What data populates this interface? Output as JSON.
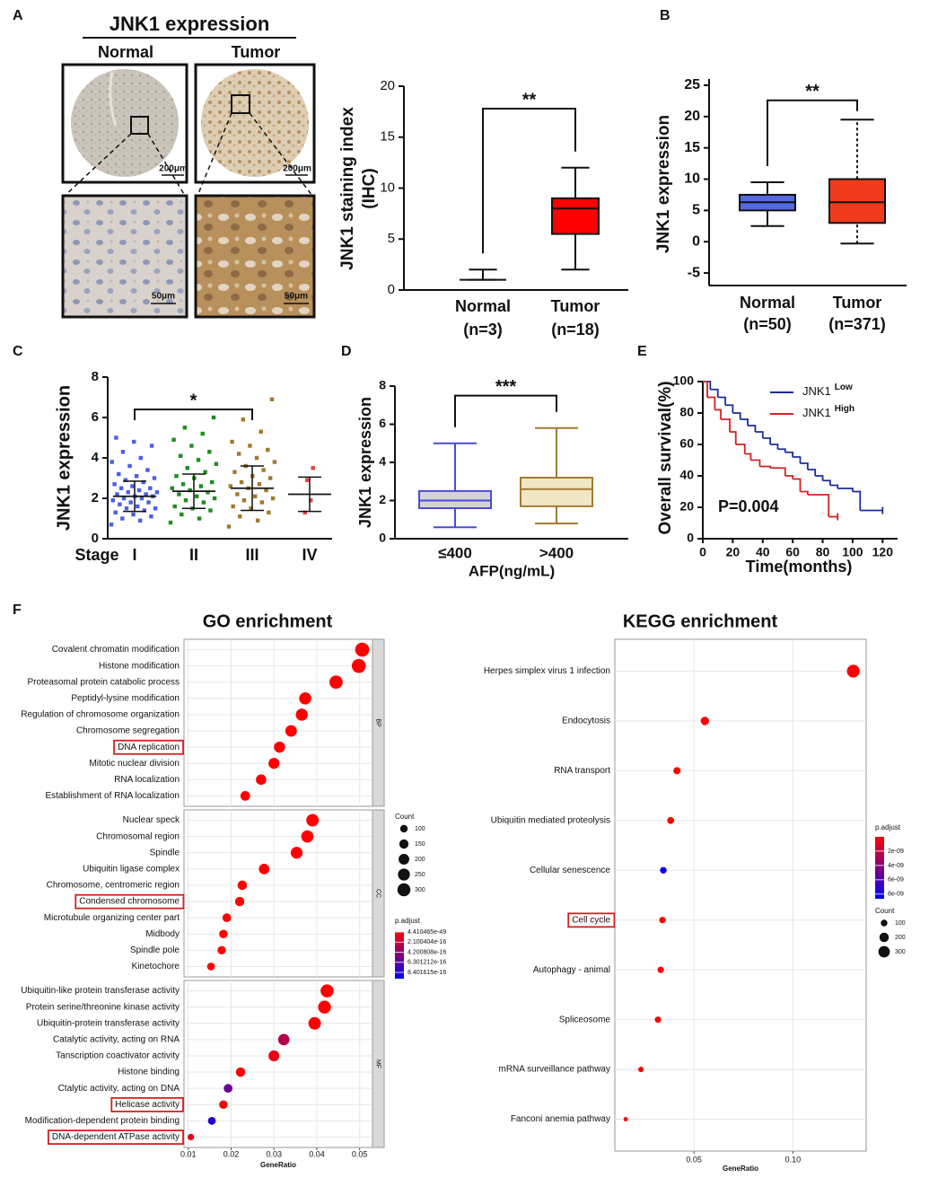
{
  "ihc": {
    "panel": "A",
    "title": "JNK1 expression",
    "groups": [
      "Normal",
      "Tumor"
    ],
    "scale_bars": [
      "200μm",
      "50μm"
    ]
  },
  "chart_data": [
    {
      "type": "box",
      "ylabel": [
        "JNK1 staining index",
        "(IHC)"
      ],
      "categories": [
        "Normal",
        "Tumor"
      ],
      "n_labels": [
        "(n=3)",
        "(n=18)"
      ],
      "boxes": [
        {
          "min": 1,
          "q1": 1,
          "median": 1,
          "q3": 1,
          "max": 2
        },
        {
          "min": 2,
          "q1": 5.5,
          "median": 8,
          "q3": 9,
          "max": 12
        }
      ],
      "colors": [
        "#ffffff",
        "#ff0000"
      ],
      "ylim": [
        0,
        20
      ],
      "yticks": [
        0,
        5,
        10,
        15,
        20
      ],
      "significance": {
        "text": "**",
        "from": 0,
        "to": 1,
        "y": 17.8
      }
    },
    {
      "type": "box",
      "panel": "B",
      "ylabel": "JNK1 expression",
      "categories": [
        "Normal",
        "Tumor"
      ],
      "n_labels": [
        "(n=50)",
        "(n=371)"
      ],
      "boxes": [
        {
          "min": 2.5,
          "q1": 5,
          "median": 6.3,
          "q3": 7.5,
          "max": 9.5
        },
        {
          "min": -0.3,
          "q1": 3,
          "median": 6.3,
          "q3": 10,
          "max": 19.5
        }
      ],
      "colors": [
        "#5468e0",
        "#f03c1c"
      ],
      "whisker_style": [
        "solid",
        "dashed"
      ],
      "ylim": [
        -7,
        26
      ],
      "yticks": [
        -5,
        0,
        5,
        10,
        15,
        20,
        25
      ],
      "significance": {
        "text": "**",
        "from": 0,
        "to": 1,
        "y": 22.6
      }
    },
    {
      "type": "strip",
      "panel": "C",
      "ylabel": "JNK1 expression",
      "xlabel": "Stage",
      "categories": [
        "I",
        "II",
        "III",
        "IV"
      ],
      "series": [
        {
          "color": "#4a5ee8",
          "mean": 2.1,
          "sd": 0.75,
          "values": [
            0.7,
            0.9,
            1.0,
            1.1,
            1.2,
            1.3,
            1.4,
            1.5,
            1.5,
            1.6,
            1.7,
            1.8,
            1.8,
            1.9,
            2.0,
            2.0,
            2.1,
            2.1,
            2.2,
            2.2,
            2.3,
            2.3,
            2.4,
            2.5,
            2.5,
            2.6,
            2.7,
            2.8,
            2.9,
            3.0,
            3.1,
            3.2,
            3.4,
            3.6,
            3.8,
            4.0,
            4.3,
            4.6,
            4.8,
            5.0
          ]
        },
        {
          "color": "#1e8c1e",
          "mean": 2.35,
          "sd": 0.85,
          "values": [
            0.8,
            1.0,
            1.2,
            1.4,
            1.5,
            1.6,
            1.8,
            1.9,
            2.0,
            2.1,
            2.2,
            2.3,
            2.4,
            2.5,
            2.6,
            2.7,
            2.8,
            3.0,
            3.1,
            3.3,
            3.5,
            3.7,
            3.9,
            4.1,
            4.3,
            4.6,
            4.9,
            5.2,
            5.5,
            6.0
          ]
        },
        {
          "color": "#a0782a",
          "mean": 2.5,
          "sd": 1.1,
          "values": [
            0.6,
            0.9,
            1.1,
            1.3,
            1.5,
            1.6,
            1.8,
            1.9,
            2.0,
            2.1,
            2.2,
            2.4,
            2.5,
            2.6,
            2.7,
            2.8,
            3.0,
            3.1,
            3.3,
            3.4,
            3.6,
            3.8,
            4.0,
            4.2,
            4.4,
            4.6,
            4.8,
            5.3,
            5.9,
            6.9
          ]
        },
        {
          "color": "#e8404a",
          "mean": 2.2,
          "sd": 0.85,
          "values": [
            1.3,
            1.9,
            2.9,
            3.5
          ]
        }
      ],
      "ylim": [
        0,
        8
      ],
      "yticks": [
        0,
        2,
        4,
        6,
        8
      ],
      "significance": {
        "text": "*",
        "from": 0,
        "to": 2,
        "y": 6.4
      }
    },
    {
      "type": "box",
      "panel": "D",
      "ylabel": "JNK1 expression",
      "xlabel": "AFP(ng/mL)",
      "categories": [
        "≤400",
        ">400"
      ],
      "boxes": [
        {
          "min": 0.6,
          "q1": 1.6,
          "median": 2.0,
          "q3": 2.5,
          "max": 5.0
        },
        {
          "min": 0.8,
          "q1": 1.7,
          "median": 2.6,
          "q3": 3.2,
          "max": 5.8
        }
      ],
      "colors": [
        "#d4d4d4",
        "#f0e8c4"
      ],
      "edge_colors": [
        "#4b4bdc",
        "#a47a32"
      ],
      "ylim": [
        0,
        8
      ],
      "yticks": [
        0,
        2,
        4,
        6,
        8
      ],
      "significance": {
        "text": "***",
        "from": 0,
        "to": 1,
        "y": 7.5
      }
    },
    {
      "type": "step",
      "panel": "E",
      "ylabel": "Overall survival(%)",
      "xlabel": "Time(months)",
      "annotation": "P=0.004",
      "xlim": [
        0,
        130
      ],
      "xticks": [
        0,
        20,
        40,
        60,
        80,
        100,
        120
      ],
      "ylim": [
        0,
        100
      ],
      "yticks": [
        0,
        20,
        40,
        60,
        80,
        100
      ],
      "series": [
        {
          "name": "JNK1",
          "superscript": "Low",
          "color": "#1c2c9c",
          "x": [
            0,
            5,
            10,
            15,
            20,
            25,
            30,
            35,
            40,
            45,
            50,
            55,
            60,
            65,
            70,
            75,
            80,
            85,
            90,
            100,
            105,
            120
          ],
          "values": [
            100,
            95,
            90,
            85,
            80,
            76,
            72,
            68,
            64,
            60,
            57,
            55,
            52,
            48,
            44,
            40,
            37,
            34,
            32,
            30,
            18,
            18
          ]
        },
        {
          "name": "JNK1",
          "superscript": "High",
          "color": "#d42020",
          "x": [
            0,
            3,
            8,
            12,
            18,
            22,
            28,
            32,
            38,
            45,
            55,
            60,
            65,
            70,
            80,
            84,
            90
          ],
          "values": [
            100,
            90,
            82,
            76,
            68,
            60,
            54,
            50,
            46,
            45,
            40,
            38,
            30,
            28,
            28,
            14,
            14
          ]
        }
      ]
    },
    {
      "type": "bubble",
      "panel": "F",
      "title": "GO enrichment",
      "xlabel": "GeneRatio",
      "xlim": [
        0.009,
        0.053
      ],
      "xticks": [
        0.01,
        0.02,
        0.03,
        0.04,
        0.05
      ],
      "facets": [
        {
          "label": "BP",
          "categories": [
            "Covalent chromatin modification",
            "Histone modification",
            "Proteasomal protein catabolic process",
            "Peptidyl-lysine modification",
            "Regulation of chromosome organization",
            "Chromosome segregation",
            "DNA replication",
            "Mitotic nuclear division",
            "RNA localization",
            "Establishment of RNA localization"
          ],
          "values": [
            0.0506,
            0.0498,
            0.0445,
            0.0373,
            0.0365,
            0.034,
            0.0313,
            0.03,
            0.027,
            0.0233
          ],
          "counts": [
            350,
            345,
            310,
            260,
            255,
            237,
            218,
            210,
            190,
            163
          ],
          "p_adjust": [
            1e-30,
            1e-30,
            1e-30,
            1e-30,
            1e-30,
            1e-30,
            1e-30,
            1e-30,
            1e-30,
            1e-30
          ],
          "highlight": [
            6
          ]
        },
        {
          "label": "CC",
          "categories": [
            "Nuclear speck",
            "Chromosomal region",
            "Spindle",
            "Ubiquitin ligase complex",
            "Chromosome, centromeric region",
            "Condensed chromosome",
            "Microtubule organizing center part",
            "Midbody",
            "Spindle pole",
            "Kinetochore"
          ],
          "values": [
            0.039,
            0.0378,
            0.0353,
            0.0277,
            0.0226,
            0.022,
            0.019,
            0.0182,
            0.0178,
            0.0153
          ],
          "counts": [
            273,
            265,
            247,
            194,
            158,
            154,
            133,
            127,
            125,
            107
          ],
          "p_adjust": [
            1e-30,
            1e-30,
            1e-30,
            1e-30,
            1e-30,
            1e-30,
            1e-30,
            1e-30,
            1e-30,
            1e-30
          ],
          "highlight": [
            5
          ]
        },
        {
          "label": "MF",
          "categories": [
            "Ubiquitin-like protein transferase activity",
            "Protein serine/threonine kinase activity",
            "Ubiquitin-protein transferase activity",
            "Catalytic activity, acting on RNA",
            "Tanscription coactivator activity",
            "Histone binding",
            "Ctalytic activity, acting on DNA",
            "Helicase activity",
            "Modification-dependent protein binding",
            "DNA-dependent ATPase activity"
          ],
          "values": [
            0.0424,
            0.0418,
            0.0395,
            0.0323,
            0.03,
            0.0222,
            0.0193,
            0.0182,
            0.0155,
            0.0106
          ],
          "counts": [
            297,
            293,
            277,
            226,
            210,
            155,
            135,
            127,
            108,
            74
          ],
          "p_adjust": [
            1e-30,
            1e-30,
            1e-30,
            2.8e-16,
            9e-17,
            1e-30,
            5.6e-16,
            1e-30,
            8.4e-16,
            6e-17
          ],
          "highlight": [
            7,
            9
          ]
        }
      ],
      "size_title": "Count",
      "size_ticks": [
        100,
        150,
        200,
        250,
        300
      ],
      "color_title": "p.adjust",
      "color_ticks": [
        4.410465e-49,
        2.100404e-16,
        4.200808e-16,
        6.301212e-16,
        8.401615e-16
      ],
      "clim": [
        0,
        9.7e-16
      ],
      "colors": [
        "#ff0000",
        "#0000ff"
      ]
    },
    {
      "type": "bubble",
      "title": "KEGG enrichment",
      "xlabel": "GeneRatio",
      "xlim": [
        0.01,
        0.137
      ],
      "xticks": [
        0.05,
        {
          "value": 0.1,
          "label": "0.10"
        }
      ],
      "categories": [
        "Herpes simplex virus 1 infection",
        "Endocytosis",
        "RNA transport",
        "Ubiquitin mediated proteolysis",
        "Cellular senescence",
        "Cell cycle",
        "Autophagy - animal",
        "Spliceosome",
        "mRNA surveillance pathway",
        "Fanconi anemia pathway"
      ],
      "values": [
        0.1305,
        0.0555,
        0.0414,
        0.0382,
        0.0345,
        0.0341,
        0.0332,
        0.0318,
        0.0232,
        0.0155
      ],
      "counts": [
        370,
        160,
        118,
        109,
        98,
        97,
        94,
        90,
        66,
        44
      ],
      "p_adjust": [
        1e-11,
        1e-11,
        1e-11,
        1e-11,
        8.4e-09,
        1e-11,
        1e-11,
        1e-11,
        1e-11,
        1e-11
      ],
      "highlight": [
        5
      ],
      "size_title": "Count",
      "size_ticks": [
        100,
        200,
        300
      ],
      "color_title": "p.adjust",
      "color_ticks": [
        {
          "value": 2e-09,
          "label": "2e-09"
        },
        {
          "value": 4e-09,
          "label": "4e-09"
        },
        {
          "value": 6e-09,
          "label": "6e-09"
        },
        {
          "value": 8e-09,
          "label": "8e-09"
        }
      ],
      "clim": [
        0,
        8.65e-09
      ],
      "colors": [
        "#ff0000",
        "#0000ff"
      ]
    }
  ]
}
